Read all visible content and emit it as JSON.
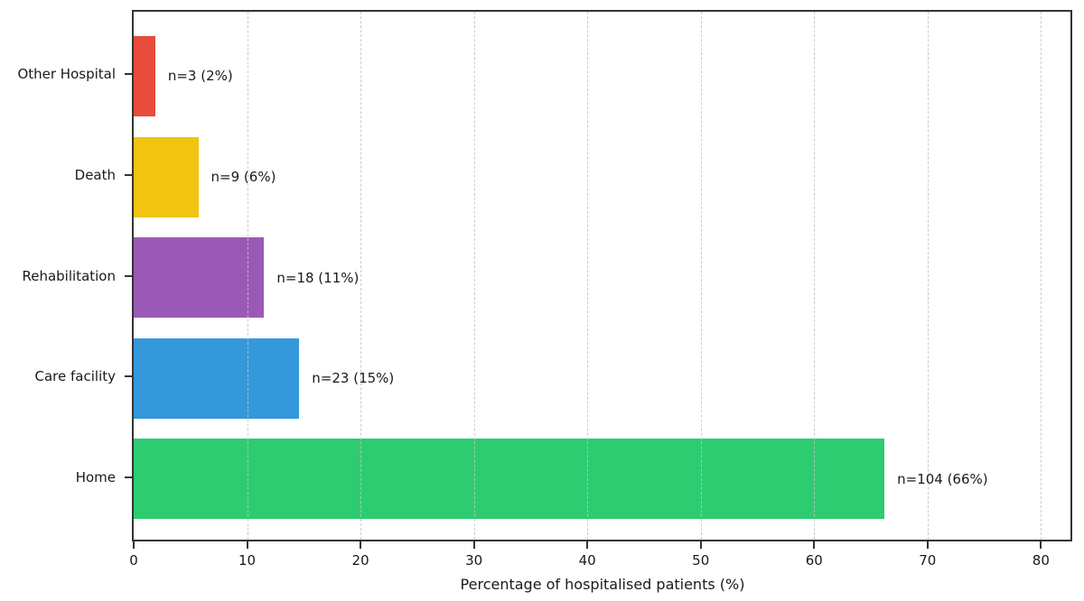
{
  "chart_data": {
    "type": "bar",
    "orientation": "horizontal",
    "title": "",
    "xlabel": "Percentage of hospitalised patients (%)",
    "ylabel": "",
    "categories": [
      "Other Hospital",
      "Death",
      "Rehabilitation",
      "Care facility",
      "Home"
    ],
    "counts": [
      3,
      9,
      18,
      23,
      104
    ],
    "values": [
      1.9,
      5.7,
      11.5,
      14.6,
      66.2
    ],
    "bar_labels": [
      "n=3 (2%)",
      "n=9 (6%)",
      "n=18 (11%)",
      "n=23 (15%)",
      "n=104 (66%)"
    ],
    "bar_colors": [
      "#e74c3c",
      "#f1c40f",
      "#9b59b6",
      "#3498db",
      "#2ecc71"
    ],
    "x_ticks": [
      0,
      10,
      20,
      30,
      40,
      50,
      60,
      70,
      80
    ],
    "xlim": [
      0,
      82.6
    ],
    "grid": "vertical-dashed-over-bars",
    "legend": "none"
  },
  "style": {
    "spine_color": "#333333",
    "grid_color": "#c3c3c3",
    "text_color": "#1a1a1a",
    "background": "#ffffff"
  }
}
